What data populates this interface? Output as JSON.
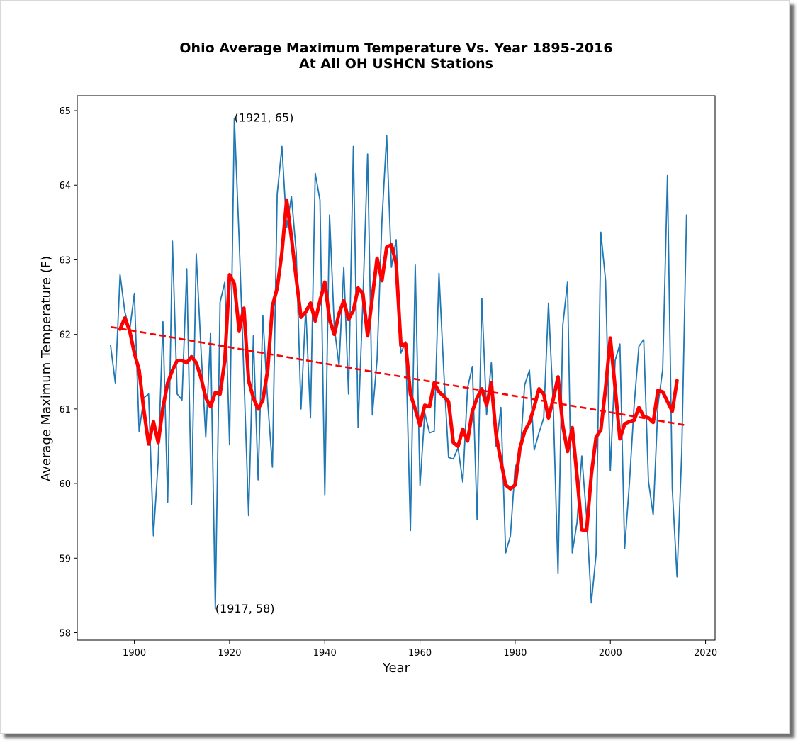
{
  "chart_data": {
    "type": "line",
    "title": "Ohio Average Maximum Temperature Vs. Year 1895-2016",
    "subtitle": "At All OH USHCN Stations",
    "xlabel": "Year",
    "ylabel": "Average Maximum Temperature (F)",
    "xlim": [
      1888,
      2022
    ],
    "ylim": [
      57.9,
      65.2
    ],
    "xticks": [
      1900,
      1920,
      1940,
      1960,
      1980,
      2000,
      2020
    ],
    "yticks": [
      58,
      59,
      60,
      61,
      62,
      63,
      64,
      65
    ],
    "grid": false,
    "series": [
      {
        "color": "#1f77b4",
        "style": "solid",
        "x": [
          1895,
          1896,
          1897,
          1898,
          1899,
          1900,
          1901,
          1902,
          1903,
          1904,
          1905,
          1906,
          1907,
          1908,
          1909,
          1910,
          1911,
          1912,
          1913,
          1914,
          1915,
          1916,
          1917,
          1918,
          1919,
          1920,
          1921,
          1922,
          1923,
          1924,
          1925,
          1926,
          1927,
          1928,
          1929,
          1930,
          1931,
          1932,
          1933,
          1934,
          1935,
          1936,
          1937,
          1938,
          1939,
          1940,
          1941,
          1942,
          1943,
          1944,
          1945,
          1946,
          1947,
          1948,
          1949,
          1950,
          1951,
          1952,
          1953,
          1954,
          1955,
          1956,
          1957,
          1958,
          1959,
          1960,
          1961,
          1962,
          1963,
          1964,
          1965,
          1966,
          1967,
          1968,
          1969,
          1970,
          1971,
          1972,
          1973,
          1974,
          1975,
          1976,
          1977,
          1978,
          1979,
          1980,
          1981,
          1982,
          1983,
          1984,
          1985,
          1986,
          1987,
          1988,
          1989,
          1990,
          1991,
          1992,
          1993,
          1994,
          1995,
          1996,
          1997,
          1998,
          1999,
          2000,
          2001,
          2002,
          2003,
          2004,
          2005,
          2006,
          2007,
          2008,
          2009,
          2010,
          2011,
          2012,
          2013,
          2014,
          2015,
          2016
        ],
        "y": [
          61.85,
          61.35,
          62.8,
          62.3,
          62.05,
          62.55,
          60.7,
          61.15,
          61.2,
          59.3,
          60.3,
          62.17,
          59.75,
          63.25,
          61.2,
          61.12,
          62.88,
          59.72,
          63.08,
          61.8,
          60.62,
          62.02,
          58.32,
          62.43,
          62.7,
          60.52,
          64.9,
          63.28,
          61.45,
          59.57,
          61.98,
          60.05,
          62.25,
          61.1,
          60.22,
          63.88,
          64.52,
          63.43,
          63.85,
          63.1,
          61.0,
          62.35,
          60.88,
          64.16,
          63.8,
          59.85,
          63.6,
          62.1,
          61.58,
          62.9,
          61.2,
          64.52,
          60.75,
          62.45,
          64.42,
          60.92,
          61.67,
          63.52,
          64.67,
          62.9,
          63.27,
          61.75,
          61.9,
          59.37,
          62.93,
          59.97,
          60.95,
          60.68,
          60.7,
          62.82,
          61.5,
          60.35,
          60.33,
          60.48,
          60.02,
          61.28,
          61.57,
          59.52,
          62.48,
          60.92,
          61.62,
          60.5,
          61.02,
          59.07,
          59.3,
          60.22,
          60.35,
          61.32,
          61.52,
          60.45,
          60.68,
          60.88,
          62.42,
          61.05,
          58.8,
          62.12,
          62.7,
          59.07,
          59.48,
          60.37,
          59.55,
          58.4,
          59.05,
          63.37,
          62.72,
          60.17,
          61.65,
          61.87,
          59.13,
          60.0,
          61.05,
          61.84,
          61.93,
          60.03,
          59.58,
          61.05,
          61.53,
          64.13,
          59.93,
          58.75,
          60.43,
          63.6
        ]
      },
      {
        "color": "#ff0000",
        "style": "solid",
        "x": [
          1897,
          1898,
          1899,
          1900,
          1901,
          1902,
          1903,
          1904,
          1905,
          1906,
          1907,
          1908,
          1909,
          1910,
          1911,
          1912,
          1913,
          1914,
          1915,
          1916,
          1917,
          1918,
          1919,
          1920,
          1921,
          1922,
          1923,
          1924,
          1925,
          1926,
          1927,
          1928,
          1929,
          1930,
          1931,
          1932,
          1933,
          1934,
          1935,
          1936,
          1937,
          1938,
          1939,
          1940,
          1941,
          1942,
          1943,
          1944,
          1945,
          1946,
          1947,
          1948,
          1949,
          1950,
          1951,
          1952,
          1953,
          1954,
          1955,
          1956,
          1957,
          1958,
          1959,
          1960,
          1961,
          1962,
          1963,
          1964,
          1965,
          1966,
          1967,
          1968,
          1969,
          1970,
          1971,
          1972,
          1973,
          1974,
          1975,
          1976,
          1977,
          1978,
          1979,
          1980,
          1981,
          1982,
          1983,
          1984,
          1985,
          1986,
          1987,
          1988,
          1989,
          1990,
          1991,
          1992,
          1993,
          1994,
          1995,
          1996,
          1997,
          1998,
          1999,
          2000,
          2001,
          2002,
          2003,
          2004,
          2005,
          2006,
          2007,
          2008,
          2009,
          2010,
          2011,
          2012,
          2013,
          2014
        ],
        "y": [
          62.07,
          62.22,
          62.05,
          61.75,
          61.52,
          60.98,
          60.53,
          60.83,
          60.55,
          61.02,
          61.35,
          61.52,
          61.65,
          61.65,
          61.62,
          61.7,
          61.62,
          61.42,
          61.15,
          61.03,
          61.22,
          61.2,
          61.65,
          62.8,
          62.68,
          62.05,
          62.35,
          61.38,
          61.15,
          61.0,
          61.12,
          61.52,
          62.38,
          62.62,
          63.1,
          63.8,
          63.3,
          62.75,
          62.23,
          62.3,
          62.42,
          62.18,
          62.45,
          62.7,
          62.2,
          62.0,
          62.28,
          62.45,
          62.2,
          62.32,
          62.62,
          62.55,
          61.98,
          62.5,
          63.02,
          62.72,
          63.17,
          63.2,
          62.95,
          61.85,
          61.87,
          61.2,
          61.0,
          60.78,
          61.05,
          61.03,
          61.35,
          61.23,
          61.17,
          61.1,
          60.55,
          60.5,
          60.73,
          60.57,
          60.97,
          61.15,
          61.27,
          61.05,
          61.35,
          60.65,
          60.3,
          59.98,
          59.93,
          59.98,
          60.47,
          60.7,
          60.82,
          61.03,
          61.27,
          61.2,
          60.88,
          61.13,
          61.43,
          60.78,
          60.43,
          60.75,
          60.1,
          59.38,
          59.37,
          60.12,
          60.62,
          60.72,
          61.28,
          61.95,
          61.28,
          60.6,
          60.8,
          60.83,
          60.85,
          61.02,
          60.9,
          60.88,
          60.82,
          61.25,
          61.23,
          61.1,
          60.97,
          61.38
        ]
      },
      {
        "color": "#ff0000",
        "style": "dashed",
        "x": [
          1895,
          2016
        ],
        "y": [
          62.1,
          60.78
        ]
      }
    ],
    "annotations": [
      {
        "text": "(1921, 65)",
        "x": 1921,
        "y": 64.9
      },
      {
        "text": "(1917, 58)",
        "x": 1917,
        "y": 58.32
      }
    ]
  }
}
